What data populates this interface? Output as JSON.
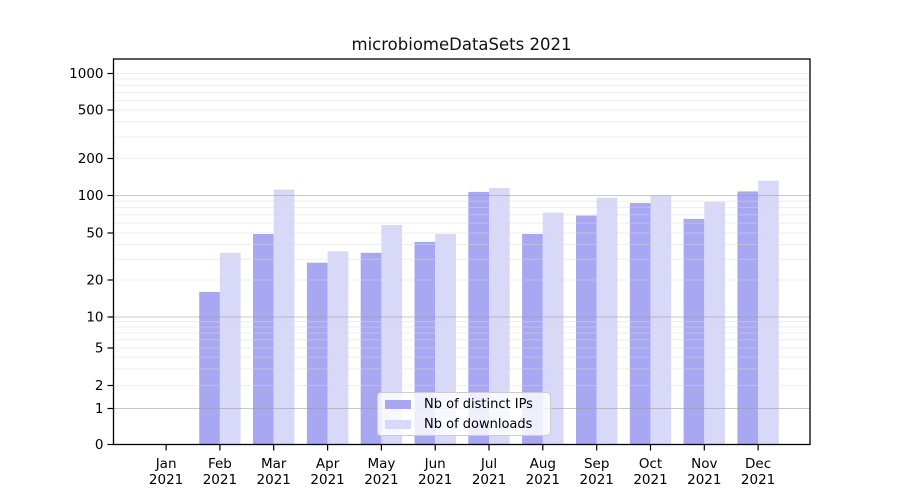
{
  "figure": {
    "background": "#ffffff"
  },
  "chart_data": {
    "type": "bar",
    "title": "microbiomeDataSets 2021",
    "categories": [
      "Jan 2021",
      "Feb 2021",
      "Mar 2021",
      "Apr 2021",
      "May 2021",
      "Jun 2021",
      "Jul 2021",
      "Aug 2021",
      "Sep 2021",
      "Oct 2021",
      "Nov 2021",
      "Dec 2021"
    ],
    "series": [
      {
        "name": "Nb of distinct IPs",
        "color": "#a8a8f2",
        "values": [
          0,
          16,
          49,
          28,
          34,
          42,
          107,
          49,
          69,
          87,
          65,
          108
        ]
      },
      {
        "name": "Nb of downloads",
        "color": "#d8d8f8",
        "values": [
          0,
          34,
          112,
          35,
          58,
          49,
          115,
          73,
          96,
          100,
          89,
          132
        ]
      }
    ],
    "xlabel": "",
    "ylabel": "",
    "y_ticks": [
      0,
      1,
      2,
      5,
      10,
      20,
      50,
      100,
      200,
      500,
      1000
    ],
    "y_scale": "symlog",
    "ylim": [
      0,
      1300
    ],
    "grid": "on",
    "legend_position": "inside bottom-center",
    "text_color": "#000000",
    "major_grid_color": "#9a9a9a",
    "minor_grid_color": "#d9d9d9",
    "spine_color": "#000000"
  }
}
